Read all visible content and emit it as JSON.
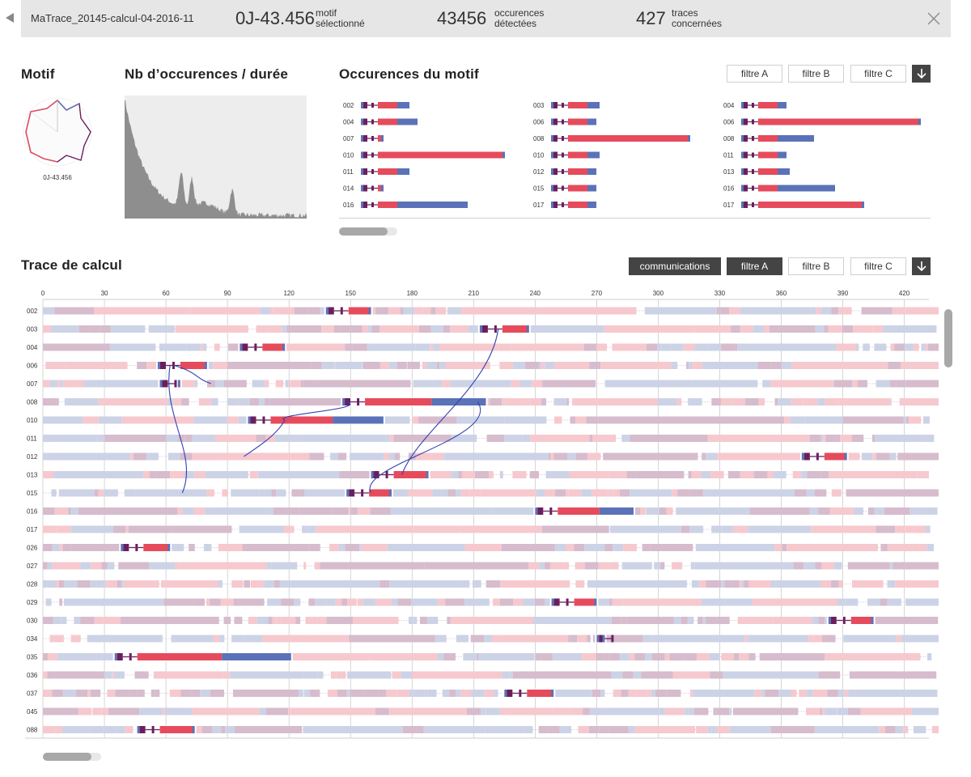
{
  "header": {
    "file_name": "MaTrace_20145-calcul-04-2016-11",
    "motif_value": "0J-43.456",
    "motif_label_1": "motif",
    "motif_label_2": "sélectionné",
    "occ_value": "43456",
    "occ_label_1": "occurences",
    "occ_label_2": "détectées",
    "traces_value": "427",
    "traces_label_1": "traces",
    "traces_label_2": "concernées"
  },
  "icons": {
    "back": "back-arrow-icon",
    "close": "close-icon",
    "download": "download-arrow-icon"
  },
  "motif": {
    "title": "Motif",
    "caption": "0J-43.456"
  },
  "histogram": {
    "title": "Nb d’occurences / durée"
  },
  "occurrences": {
    "title": "Occurences du motif",
    "filters": [
      "filtre A",
      "filtre B",
      "filtre C"
    ],
    "columns": [
      {
        "items": [
          {
            "id": "002",
            "len": 60
          },
          {
            "id": "004",
            "len": 70
          },
          {
            "id": "007",
            "len": 28
          },
          {
            "id": "010",
            "len": 178
          },
          {
            "id": "011",
            "len": 60
          },
          {
            "id": "014",
            "len": 28
          },
          {
            "id": "016",
            "len": 132
          }
        ]
      },
      {
        "items": [
          {
            "id": "003",
            "len": 60
          },
          {
            "id": "006",
            "len": 56
          },
          {
            "id": "008",
            "len": 172
          },
          {
            "id": "010",
            "len": 60
          },
          {
            "id": "012",
            "len": 56
          },
          {
            "id": "015",
            "len": 56
          },
          {
            "id": "017",
            "len": 56
          }
        ]
      },
      {
        "items": [
          {
            "id": "004",
            "len": 56
          },
          {
            "id": "006",
            "len": 222
          },
          {
            "id": "008",
            "len": 90
          },
          {
            "id": "011",
            "len": 56
          },
          {
            "id": "013",
            "len": 60
          },
          {
            "id": "016",
            "len": 116
          },
          {
            "id": "017",
            "len": 152
          }
        ]
      }
    ]
  },
  "trace": {
    "title": "Trace de calcul",
    "filters": [
      "communications",
      "filtre A",
      "filtre B",
      "filtre C"
    ],
    "active_filter": "filtre A",
    "ticks": [
      "0",
      "30",
      "60",
      "90",
      "120",
      "150",
      "180",
      "210",
      "240",
      "270",
      "300",
      "330",
      "360",
      "390",
      "420"
    ],
    "x_max": 432,
    "rows": [
      {
        "id": "002",
        "motif_start": 138,
        "motif_len": 22
      },
      {
        "id": "003",
        "motif_start": 213,
        "motif_len": 24
      },
      {
        "id": "004",
        "motif_start": 96,
        "motif_len": 22
      },
      {
        "id": "006",
        "motif_start": 56,
        "motif_len": 24
      },
      {
        "id": "007",
        "motif_start": 57,
        "motif_len": 10
      },
      {
        "id": "008",
        "motif_start": 146,
        "motif_len": 70
      },
      {
        "id": "010",
        "motif_start": 100,
        "motif_len": 66
      },
      {
        "id": "011",
        "motif_start": null,
        "motif_len": 0
      },
      {
        "id": "012",
        "motif_start": 370,
        "motif_len": 22
      },
      {
        "id": "013",
        "motif_start": 160,
        "motif_len": 28
      },
      {
        "id": "015",
        "motif_start": 148,
        "motif_len": 22
      },
      {
        "id": "016",
        "motif_start": 240,
        "motif_len": 48
      },
      {
        "id": "017",
        "motif_start": null,
        "motif_len": 0
      },
      {
        "id": "026",
        "motif_start": 38,
        "motif_len": 24
      },
      {
        "id": "027",
        "motif_start": null,
        "motif_len": 0
      },
      {
        "id": "028",
        "motif_start": null,
        "motif_len": 0
      },
      {
        "id": "029",
        "motif_start": 248,
        "motif_len": 22
      },
      {
        "id": "030",
        "motif_start": 383,
        "motif_len": 22
      },
      {
        "id": "034",
        "motif_start": 270,
        "motif_len": 4
      },
      {
        "id": "035",
        "motif_start": 35,
        "motif_len": 86
      },
      {
        "id": "036",
        "motif_start": null,
        "motif_len": 0
      },
      {
        "id": "037",
        "motif_start": 225,
        "motif_len": 24
      },
      {
        "id": "045",
        "motif_start": null,
        "motif_len": 0
      },
      {
        "id": "088",
        "motif_start": 46,
        "motif_len": 28
      }
    ]
  },
  "colors": {
    "red": "#e64b5c",
    "dark_purple": "#6a1f5d",
    "blue": "#5b72b8",
    "light_red": "#f6c9cf",
    "light_blue": "#cdd3e6",
    "light_purple": "#d6bccd",
    "arrow": "#3340b0"
  }
}
